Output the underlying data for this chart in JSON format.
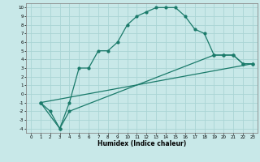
{
  "xlabel": "Humidex (Indice chaleur)",
  "bg_color": "#c8e8e8",
  "grid_color": "#aad4d4",
  "line_color": "#1a7a6a",
  "xlim": [
    -0.5,
    23.5
  ],
  "ylim": [
    -4.5,
    10.5
  ],
  "yticks": [
    -4,
    -3,
    -2,
    -1,
    0,
    1,
    2,
    3,
    4,
    5,
    6,
    7,
    8,
    9,
    10
  ],
  "xticks": [
    0,
    1,
    2,
    3,
    4,
    5,
    6,
    7,
    8,
    9,
    10,
    11,
    12,
    13,
    14,
    15,
    16,
    17,
    18,
    19,
    20,
    21,
    22,
    23
  ],
  "curve1_x": [
    1,
    2,
    3,
    4,
    5,
    6,
    7,
    8,
    9,
    10,
    11,
    12,
    13,
    14,
    15,
    16,
    17,
    18,
    19,
    20,
    21,
    22,
    23
  ],
  "curve1_y": [
    -1,
    -2,
    -4,
    -1,
    3,
    3,
    5,
    5,
    6,
    8,
    9,
    9.5,
    10,
    10,
    10,
    9,
    7.5,
    7,
    4.5,
    4.5,
    4.5,
    3.5,
    3.5
  ],
  "curve2_x": [
    1,
    3,
    4,
    19,
    20,
    21,
    22,
    23
  ],
  "curve2_y": [
    -1,
    -4,
    -2,
    4.5,
    4.5,
    4.5,
    3.5,
    3.5
  ],
  "curve3_x": [
    1,
    23
  ],
  "curve3_y": [
    -1,
    3.5
  ],
  "marker_size": 2.0,
  "line_width": 0.9,
  "tick_fontsize": 4.0,
  "xlabel_fontsize": 5.5
}
